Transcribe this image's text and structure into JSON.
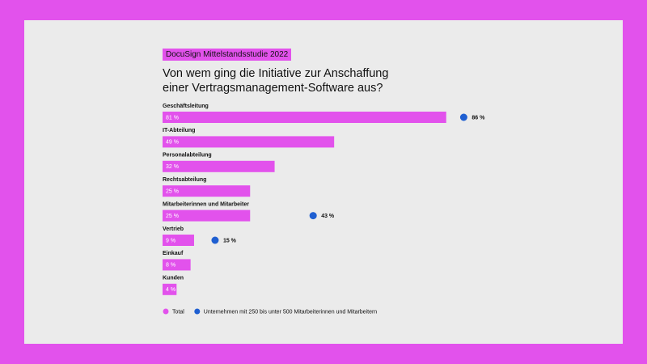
{
  "chart_data": {
    "type": "bar",
    "tag": "DocuSign Mittelstandsstudie 2022",
    "title": "Von wem ging die Initiative zur Anschaffung einer Vertragsmanagement-Software aus?",
    "categories": [
      "Geschäftsleitung",
      "IT-Abteilung",
      "Personalabteilung",
      "Rechtsabteilung",
      "Mitarbeiterinnen und Mitarbeiter",
      "Vertrieb",
      "Einkauf",
      "Kunden"
    ],
    "series": [
      {
        "name": "Total",
        "color": "#e252ec",
        "values": [
          81,
          49,
          32,
          25,
          25,
          9,
          8,
          4
        ],
        "value_labels": [
          "81 %",
          "49 %",
          "32 %",
          "25 %",
          "25 %",
          "9 %",
          "8 %",
          "4 %"
        ]
      },
      {
        "name": "Unternehmen mit 250 bis unter 500 Mitarbeiterinnen und Mitarbeitern",
        "color": "#1f5fd1",
        "values": [
          86,
          null,
          null,
          null,
          43,
          15,
          null,
          null
        ],
        "value_labels": [
          "86 %",
          null,
          null,
          null,
          "43 %",
          "15 %",
          null,
          null
        ]
      }
    ]
  }
}
